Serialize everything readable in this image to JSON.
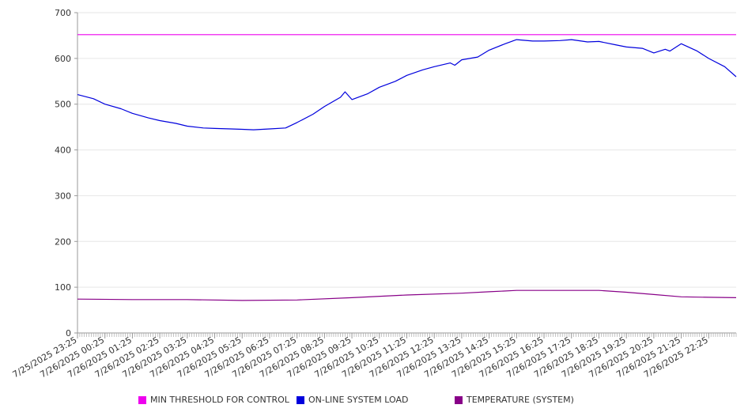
{
  "chart_data": {
    "type": "line",
    "title": "",
    "xlabel": "",
    "ylabel": "",
    "ylim": [
      0,
      700
    ],
    "y_ticks": [
      0,
      100,
      200,
      300,
      400,
      500,
      600,
      700
    ],
    "grid": "horizontal",
    "legend_position": "bottom",
    "x_tick_labels": [
      "7/25/2025 23:25",
      "7/26/2025 00:25",
      "7/26/2025 01:25",
      "7/26/2025 02:25",
      "7/26/2025 03:25",
      "7/26/2025 04:25",
      "7/26/2025 05:25",
      "7/26/2025 06:25",
      "7/26/2025 07:25",
      "7/26/2025 08:25",
      "7/26/2025 09:25",
      "7/26/2025 10:25",
      "7/26/2025 11:25",
      "7/26/2025 12:25",
      "7/26/2025 13:25",
      "7/26/2025 14:25",
      "7/26/2025 15:25",
      "7/26/2025 16:25",
      "7/26/2025 17:25",
      "7/26/2025 18:25",
      "7/26/2025 19:25",
      "7/26/2025 20:25",
      "7/26/2025 21:25",
      "7/26/2025 22:25"
    ],
    "x_range": [
      "7/25/2025 23:25",
      "7/26/2025 23:25"
    ],
    "series": [
      {
        "name": "MIN THRESHOLD FOR CONTROL",
        "color": "#ee00ee",
        "x": [
          "7/25/2025 23:25",
          "7/26/2025 23:25"
        ],
        "values": [
          652,
          652
        ]
      },
      {
        "name": "ON-LINE SYSTEM LOAD",
        "color": "#0000dd",
        "x": [
          "7/25/2025 23:25",
          "7/26/2025 00:00",
          "7/26/2025 00:25",
          "7/26/2025 01:00",
          "7/26/2025 01:25",
          "7/26/2025 02:00",
          "7/26/2025 02:25",
          "7/26/2025 03:00",
          "7/26/2025 03:25",
          "7/26/2025 04:00",
          "7/26/2025 04:25",
          "7/26/2025 05:00",
          "7/26/2025 05:25",
          "7/26/2025 05:50",
          "7/26/2025 06:25",
          "7/26/2025 07:00",
          "7/26/2025 07:25",
          "7/26/2025 08:00",
          "7/26/2025 08:25",
          "7/26/2025 09:00",
          "7/26/2025 09:10",
          "7/26/2025 09:25",
          "7/26/2025 10:00",
          "7/26/2025 10:25",
          "7/26/2025 11:00",
          "7/26/2025 11:25",
          "7/26/2025 12:00",
          "7/26/2025 12:25",
          "7/26/2025 13:00",
          "7/26/2025 13:10",
          "7/26/2025 13:25",
          "7/26/2025 14:00",
          "7/26/2025 14:25",
          "7/26/2025 15:00",
          "7/26/2025 15:25",
          "7/26/2025 16:00",
          "7/26/2025 16:25",
          "7/26/2025 17:00",
          "7/26/2025 17:25",
          "7/26/2025 18:00",
          "7/26/2025 18:25",
          "7/26/2025 19:00",
          "7/26/2025 19:25",
          "7/26/2025 20:00",
          "7/26/2025 20:25",
          "7/26/2025 20:50",
          "7/26/2025 21:00",
          "7/26/2025 21:25",
          "7/26/2025 22:00",
          "7/26/2025 22:25",
          "7/26/2025 23:00",
          "7/26/2025 23:25"
        ],
        "values": [
          521,
          512,
          500,
          490,
          480,
          470,
          464,
          458,
          452,
          448,
          447,
          446,
          445,
          444,
          446,
          448,
          460,
          478,
          495,
          515,
          527,
          510,
          523,
          537,
          550,
          563,
          575,
          582,
          590,
          585,
          597,
          603,
          618,
          632,
          641,
          638,
          638,
          639,
          641,
          636,
          637,
          630,
          625,
          622,
          612,
          620,
          616,
          632,
          616,
          600,
          582,
          560
        ]
      },
      {
        "name": "TEMPERATURE (SYSTEM)",
        "color": "#880088",
        "x": [
          "7/25/2025 23:25",
          "7/26/2025 01:25",
          "7/26/2025 03:25",
          "7/26/2025 05:25",
          "7/26/2025 07:25",
          "7/26/2025 09:25",
          "7/26/2025 11:25",
          "7/26/2025 13:25",
          "7/26/2025 14:25",
          "7/26/2025 15:25",
          "7/26/2025 17:25",
          "7/26/2025 18:25",
          "7/26/2025 19:25",
          "7/26/2025 20:25",
          "7/26/2025 21:25",
          "7/26/2025 22:25",
          "7/26/2025 23:25"
        ],
        "values": [
          74,
          73,
          73,
          71,
          72,
          77,
          83,
          87,
          90,
          93,
          93,
          93,
          89,
          84,
          79,
          78,
          77
        ]
      }
    ]
  }
}
